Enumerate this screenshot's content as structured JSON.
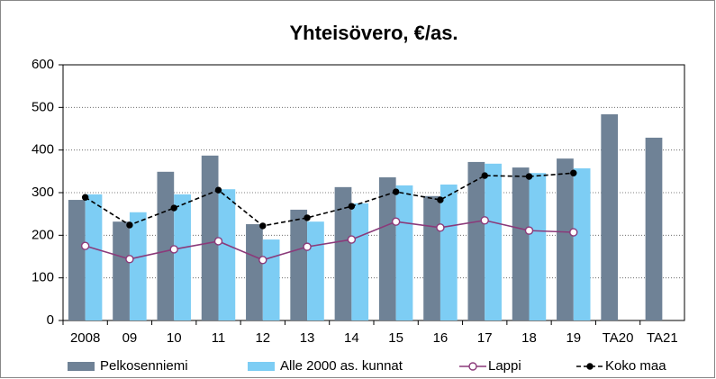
{
  "chart_data": {
    "type": "bar",
    "title": "Yhteisövero, €/as.",
    "categories": [
      "2008",
      "09",
      "10",
      "11",
      "12",
      "13",
      "14",
      "15",
      "16",
      "17",
      "18",
      "19",
      "TA20",
      "TA21"
    ],
    "series": [
      {
        "name": "Pelkosenniemi",
        "type": "bar",
        "color": "#6f8296",
        "values": [
          283,
          232,
          349,
          387,
          226,
          260,
          313,
          336,
          292,
          372,
          359,
          380,
          484,
          429
        ]
      },
      {
        "name": "Alle 2000 as. kunnat",
        "type": "bar",
        "color": "#7dcdf4",
        "values": [
          296,
          254,
          296,
          308,
          190,
          232,
          275,
          317,
          319,
          368,
          346,
          357,
          null,
          null
        ]
      },
      {
        "name": "Lappi",
        "type": "line",
        "color": "#8b3a7a",
        "marker_fill": "#ffffff",
        "dashed": false,
        "values": [
          175,
          144,
          167,
          186,
          142,
          173,
          190,
          232,
          218,
          235,
          211,
          207,
          null,
          null
        ]
      },
      {
        "name": "Koko maa",
        "type": "line",
        "color": "#000000",
        "marker_fill": "#000000",
        "dashed": true,
        "values": [
          289,
          224,
          264,
          306,
          222,
          241,
          268,
          302,
          283,
          340,
          338,
          346,
          null,
          null
        ]
      }
    ],
    "ylim": [
      0,
      600
    ],
    "yticks": [
      0,
      100,
      200,
      300,
      400,
      500,
      600
    ],
    "grid": true
  }
}
